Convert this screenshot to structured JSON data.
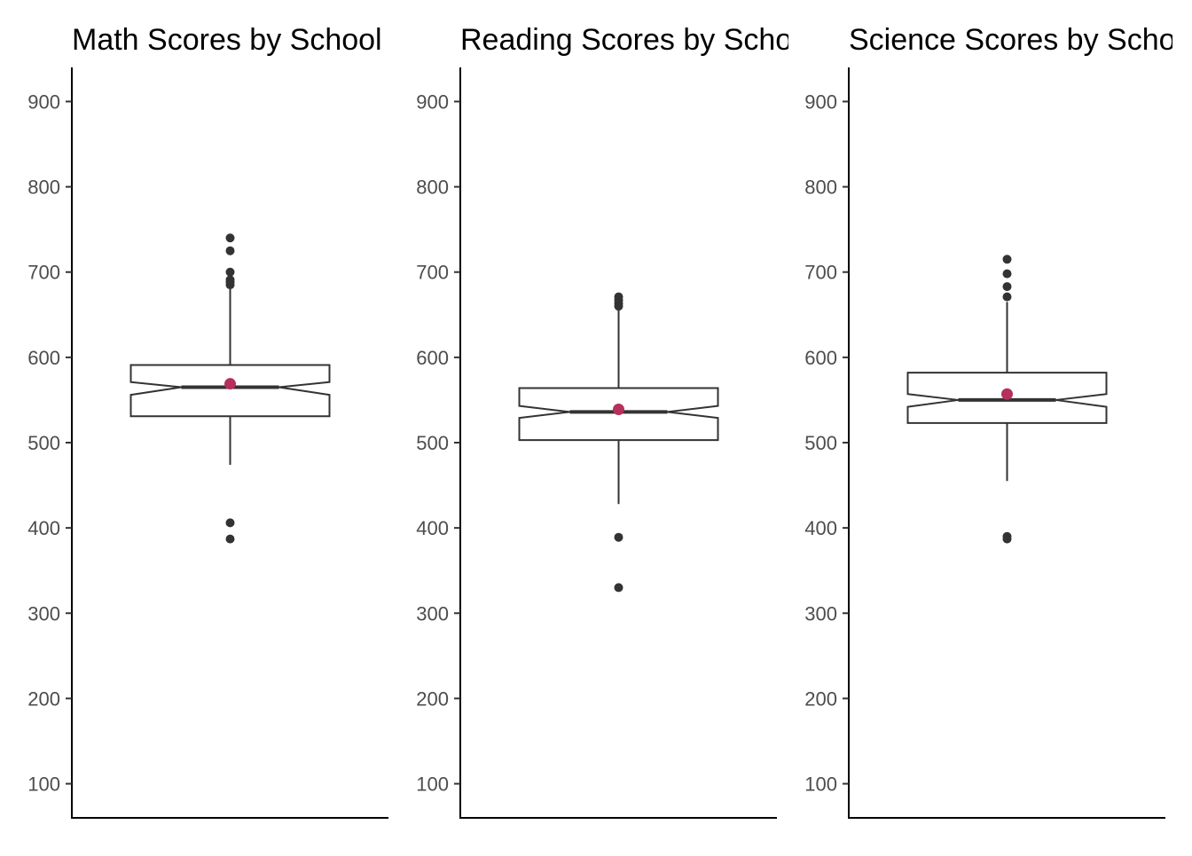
{
  "chart_data": [
    {
      "type": "boxplot",
      "title": "Math Scores by School",
      "xlabel": "",
      "ylabel": "",
      "ylim": [
        60,
        940
      ],
      "yticks": [
        100,
        200,
        300,
        400,
        500,
        600,
        700,
        800,
        900
      ],
      "stats": {
        "q1": 531,
        "median": 565,
        "q3": 591,
        "notch_low": 556,
        "notch_high": 571,
        "whisker_low": 474,
        "whisker_high": 680,
        "mean": 569
      },
      "outliers": [
        740,
        725,
        700,
        691,
        688,
        685,
        406,
        387
      ]
    },
    {
      "type": "boxplot",
      "title": "Reading Scores by School",
      "xlabel": "",
      "ylabel": "",
      "ylim": [
        60,
        940
      ],
      "yticks": [
        100,
        200,
        300,
        400,
        500,
        600,
        700,
        800,
        900
      ],
      "stats": {
        "q1": 503,
        "median": 536,
        "q3": 564,
        "notch_low": 529,
        "notch_high": 543,
        "whisker_low": 428,
        "whisker_high": 655,
        "mean": 539
      },
      "outliers": [
        671,
        667,
        663,
        660,
        389,
        330
      ]
    },
    {
      "type": "boxplot",
      "title": "Science Scores by School",
      "xlabel": "",
      "ylabel": "",
      "ylim": [
        60,
        940
      ],
      "yticks": [
        100,
        200,
        300,
        400,
        500,
        600,
        700,
        800,
        900
      ],
      "stats": {
        "q1": 523,
        "median": 550,
        "q3": 582,
        "notch_low": 542,
        "notch_high": 557,
        "whisker_low": 455,
        "whisker_high": 665,
        "mean": 557
      },
      "outliers": [
        715,
        698,
        683,
        671,
        390,
        387
      ]
    }
  ],
  "colors": {
    "mean_point": "#b5305a",
    "box_stroke": "#333333",
    "outlier": "#333333"
  }
}
